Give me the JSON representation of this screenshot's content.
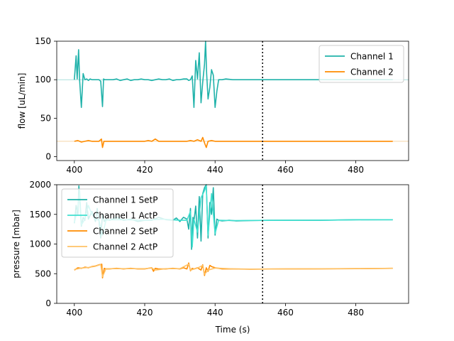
{
  "chart_data": [
    {
      "type": "line",
      "title": "",
      "xlabel": "",
      "ylabel": "flow [uL/min]",
      "xlim": [
        395,
        495
      ],
      "ylim": [
        -5,
        150
      ],
      "xticks": [
        400,
        420,
        440,
        460,
        480
      ],
      "yticks": [
        0,
        50,
        100,
        150
      ],
      "grid": false,
      "legend_position": "top-right",
      "vline_x": 453.5,
      "series": [
        {
          "name": "Channel 1",
          "color": "#20b2aa",
          "x": [
            400,
            400.5,
            400.8,
            401.2,
            401.5,
            402,
            402.5,
            403,
            403.5,
            404,
            404.5,
            405,
            406,
            407,
            407.5,
            408,
            408.3,
            408.6,
            409,
            410,
            411,
            412,
            413,
            414,
            415,
            416,
            417,
            418,
            419,
            420,
            421,
            422,
            423,
            424,
            425,
            426,
            427,
            428,
            429,
            430,
            431,
            432,
            432.5,
            433,
            433.5,
            434,
            434.5,
            435,
            435.5,
            436,
            436.5,
            437,
            437.3,
            437.6,
            438,
            438.5,
            439,
            439.5,
            440,
            440.5,
            441,
            442,
            443,
            445,
            450,
            455,
            460,
            465,
            470,
            475,
            480,
            485,
            490.5
          ],
          "y": [
            100,
            131,
            101,
            139,
            100,
            64,
            108,
            100,
            101,
            99,
            101,
            100,
            100,
            100,
            98,
            65,
            101,
            100,
            100,
            100,
            100,
            101,
            99,
            100,
            101,
            99,
            100,
            100,
            101,
            100,
            100,
            99,
            100,
            101,
            100,
            100,
            101,
            99,
            100,
            100,
            101,
            101,
            99,
            100,
            105,
            64,
            125,
            101,
            135,
            70,
            97,
            120,
            150,
            108,
            75,
            90,
            113,
            106,
            64,
            85,
            100,
            100,
            101,
            100,
            100,
            100,
            100,
            100,
            100,
            100,
            100,
            100,
            100
          ]
        },
        {
          "name": "Channel 2",
          "color": "#ff8c00",
          "x": [
            400,
            401,
            402,
            403,
            404,
            405,
            406,
            407,
            407.7,
            408,
            408.4,
            409,
            410,
            412,
            414,
            416,
            418,
            420,
            421,
            422,
            423,
            424,
            426,
            428,
            430,
            432,
            433,
            434,
            435,
            436,
            436.5,
            437,
            437.5,
            438,
            439,
            440,
            442,
            445,
            450,
            455,
            460,
            465,
            470,
            475,
            480,
            485,
            490.5
          ],
          "y": [
            20,
            21,
            19,
            20,
            21,
            20,
            20,
            20,
            23,
            12,
            20,
            20,
            20,
            20,
            20,
            20,
            20,
            20,
            21,
            20,
            23,
            20,
            20,
            20,
            20,
            20,
            21,
            20,
            22,
            20,
            25,
            18,
            12,
            20,
            21,
            20,
            20,
            20,
            20,
            20,
            20,
            20,
            20,
            20,
            20,
            20,
            20
          ]
        }
      ],
      "reference_lines": [
        {
          "y": 100,
          "color": "#aadfdb"
        },
        {
          "y": 20,
          "color": "#f5d5a8"
        }
      ]
    },
    {
      "type": "line",
      "title": "",
      "xlabel": "Time (s)",
      "ylabel": "pressure [mbar]",
      "xlim": [
        395,
        495
      ],
      "ylim": [
        0,
        2000
      ],
      "xticks": [
        400,
        420,
        440,
        460,
        480
      ],
      "yticks": [
        0,
        500,
        1000,
        1500,
        2000
      ],
      "grid": false,
      "legend_position": "top-left",
      "vline_x": 453.5,
      "series": [
        {
          "name": "Channel 1 SetP",
          "color": "#20b2aa",
          "x": [
            400,
            400.5,
            401,
            401.3,
            401.7,
            402,
            402.5,
            403,
            403.5,
            404,
            405,
            406,
            406.5,
            407,
            407.5,
            408,
            408.5,
            409,
            410,
            412,
            414,
            416,
            418,
            420,
            422,
            424,
            426,
            428,
            429,
            430,
            431,
            432,
            432.5,
            433,
            433.3,
            433.7,
            434,
            434.5,
            435,
            435.5,
            436,
            436.5,
            437,
            437.5,
            438,
            438.5,
            439,
            439.5,
            440,
            440.5,
            441,
            442,
            444,
            446,
            450,
            455,
            460,
            470,
            480,
            490.5
          ],
          "y": [
            1350,
            1650,
            1500,
            1980,
            1600,
            1300,
            1450,
            1400,
            1700,
            1420,
            1550,
            1380,
            1600,
            1400,
            1100,
            1500,
            1380,
            1420,
            1400,
            1450,
            1400,
            1420,
            1380,
            1400,
            1400,
            1450,
            1410,
            1400,
            1440,
            1380,
            1450,
            1420,
            1250,
            1600,
            910,
            1450,
            1380,
            1640,
            1100,
            1800,
            1050,
            1850,
            1950,
            2000,
            1100,
            1700,
            1500,
            1950,
            1150,
            1420,
            1400,
            1390,
            1400,
            1390,
            1395,
            1400,
            1400,
            1400,
            1410,
            1410
          ]
        },
        {
          "name": "Channel 1 ActP",
          "color": "#40e0d0",
          "x": [
            400,
            401,
            401.5,
            402,
            403,
            404,
            405,
            406,
            407,
            408,
            409,
            410,
            415,
            420,
            425,
            430,
            432,
            433,
            433.5,
            434,
            435,
            436,
            437,
            437.5,
            438,
            439,
            440,
            441,
            445,
            450,
            460,
            470,
            480,
            490.5
          ],
          "y": [
            1360,
            1620,
            1900,
            1320,
            1420,
            1650,
            1500,
            1420,
            1400,
            1150,
            1400,
            1410,
            1410,
            1400,
            1420,
            1400,
            1400,
            1550,
            950,
            1420,
            1200,
            1780,
            1900,
            1980,
            1150,
            1850,
            1180,
            1400,
            1395,
            1398,
            1400,
            1402,
            1408,
            1410
          ]
        },
        {
          "name": "Channel 2 SetP",
          "color": "#ff8c00",
          "x": [
            400,
            401,
            402,
            403,
            404,
            405,
            406,
            407,
            407.8,
            408,
            408.5,
            409,
            410,
            412,
            414,
            416,
            418,
            420,
            421,
            422,
            422.5,
            423,
            424,
            426,
            428,
            430,
            431,
            432,
            432.5,
            433,
            433.5,
            434,
            435,
            436,
            436.5,
            437,
            437.5,
            438,
            438.5,
            439,
            440,
            441,
            442,
            445,
            450,
            455,
            460,
            470,
            480,
            490.5
          ],
          "y": [
            560,
            600,
            590,
            610,
            600,
            620,
            630,
            650,
            660,
            430,
            590,
            580,
            580,
            590,
            580,
            590,
            580,
            580,
            590,
            600,
            540,
            590,
            580,
            580,
            590,
            580,
            600,
            580,
            680,
            550,
            590,
            580,
            600,
            560,
            650,
            470,
            600,
            540,
            640,
            620,
            600,
            590,
            580,
            580,
            575,
            578,
            580,
            582,
            585,
            590
          ]
        },
        {
          "name": "Channel 2 ActP",
          "color": "#ffc266",
          "x": [
            400,
            402,
            404,
            406,
            407.5,
            408,
            409,
            412,
            416,
            420,
            422,
            423,
            426,
            430,
            432.5,
            433,
            435,
            436.5,
            437,
            438,
            440,
            445,
            450,
            460,
            470,
            480,
            490.5
          ],
          "y": [
            570,
            595,
            605,
            625,
            655,
            450,
            585,
            585,
            585,
            585,
            595,
            560,
            585,
            585,
            660,
            560,
            595,
            640,
            490,
            560,
            595,
            582,
            577,
            580,
            583,
            586,
            590
          ]
        }
      ]
    }
  ]
}
